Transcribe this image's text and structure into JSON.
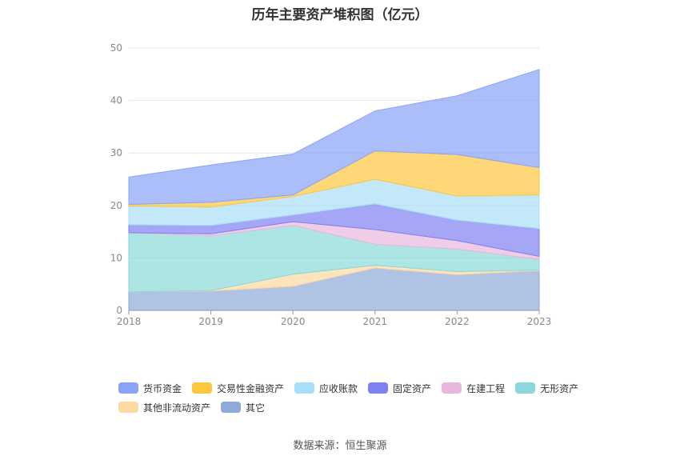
{
  "title": "历年主要资产堆积图（亿元）",
  "source": "数据来源：恒生聚源",
  "chart_data": {
    "type": "area",
    "stacked": true,
    "title": "历年主要资产堆积图（亿元）",
    "x": [
      "2018",
      "2019",
      "2020",
      "2021",
      "2022",
      "2023"
    ],
    "ylim": [
      0,
      50
    ],
    "yticks": [
      0,
      10,
      20,
      30,
      40,
      50
    ],
    "grid": true,
    "legend_position": "bottom",
    "series": [
      {
        "name": "其它",
        "color": "#8fa9d9",
        "values": [
          3.5,
          3.7,
          4.6,
          8.1,
          6.8,
          7.6
        ]
      },
      {
        "name": "其他非流动资产",
        "color": "#fcd9a0",
        "values": [
          0.0,
          0.1,
          2.3,
          0.5,
          0.6,
          0.1
        ]
      },
      {
        "name": "无形资产",
        "color": "#8ad8d9",
        "values": [
          11.3,
          10.4,
          9.3,
          4.0,
          4.3,
          2.0
        ]
      },
      {
        "name": "在建工程",
        "color": "#e8b8dc",
        "values": [
          0.0,
          0.4,
          0.7,
          2.8,
          1.6,
          0.6
        ]
      },
      {
        "name": "固定资产",
        "color": "#7f80f2",
        "values": [
          1.5,
          1.6,
          1.3,
          4.9,
          3.9,
          5.3
        ]
      },
      {
        "name": "应收账款",
        "color": "#a8def7",
        "values": [
          3.6,
          3.5,
          3.5,
          4.7,
          4.6,
          6.4
        ]
      },
      {
        "name": "交易性金融资产",
        "color": "#fec63f",
        "values": [
          0.3,
          0.9,
          0.3,
          5.4,
          7.9,
          5.2
        ]
      },
      {
        "name": "货币资金",
        "color": "#89a3f8",
        "values": [
          5.2,
          7.1,
          7.8,
          7.6,
          11.2,
          18.7
        ]
      }
    ]
  },
  "legend": [
    [
      "货币资金",
      "交易性金融资产",
      "应收账款",
      "固定资产",
      "在建工程",
      "无形资产"
    ],
    [
      "其他非流动资产",
      "其它"
    ]
  ]
}
